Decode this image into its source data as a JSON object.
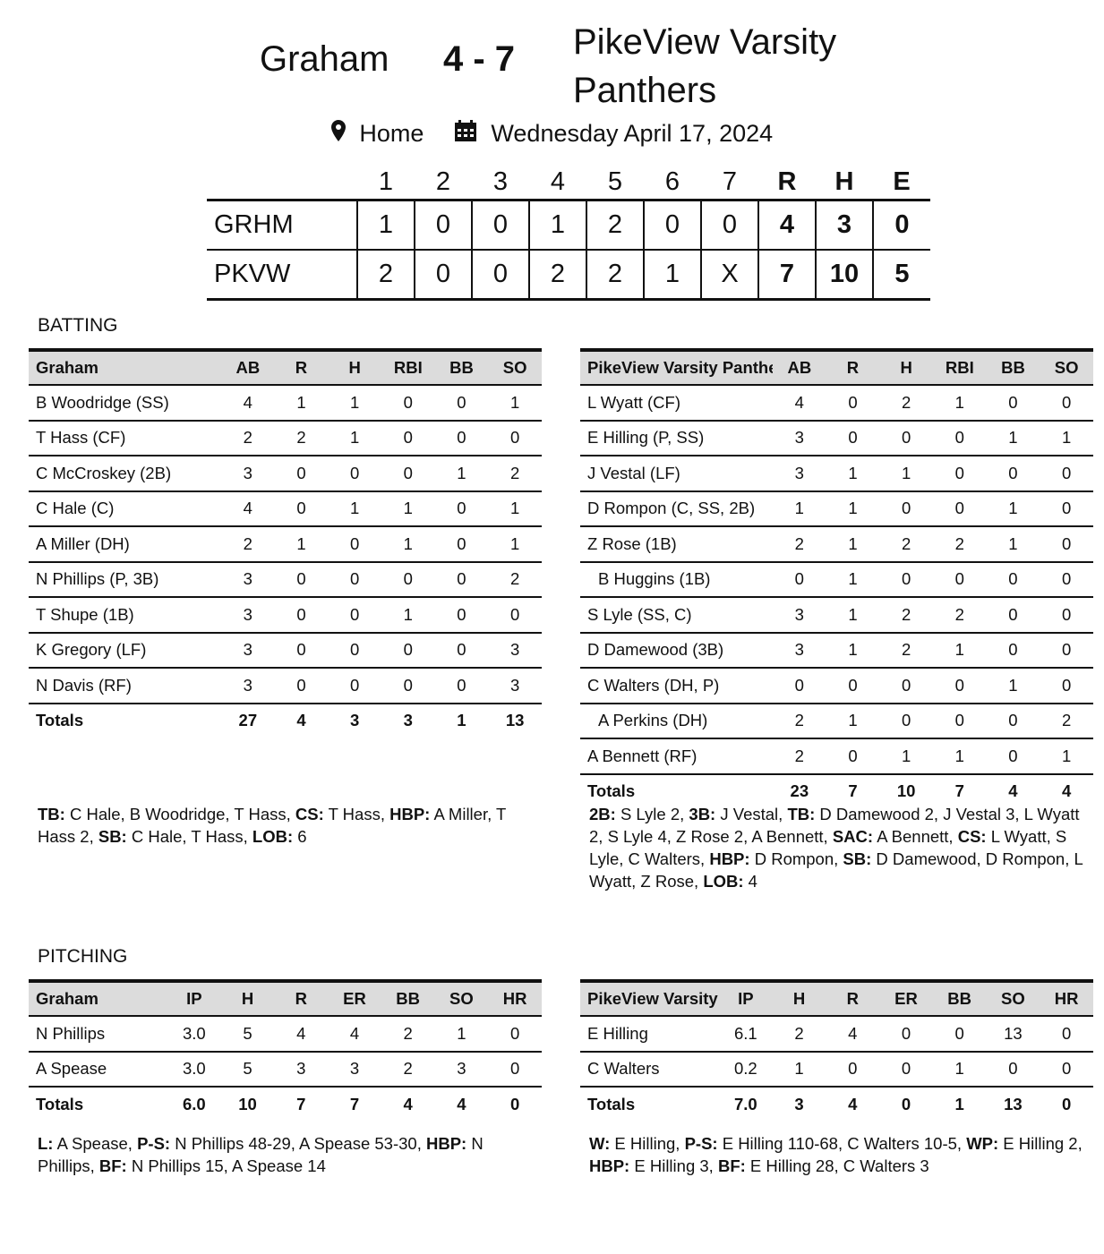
{
  "header": {
    "away": "Graham",
    "score": "4 - 7",
    "home": "PikeView Varsity Panthers",
    "location": "Home",
    "date": "Wednesday April 17, 2024",
    "location_icon": "map-pin-icon",
    "date_icon": "calendar-icon"
  },
  "linescore": {
    "columns": [
      "1",
      "2",
      "3",
      "4",
      "5",
      "6",
      "7",
      "R",
      "H",
      "E"
    ],
    "rows": [
      {
        "team": "GRHM",
        "innings": [
          "1",
          "0",
          "0",
          "1",
          "2",
          "0",
          "0"
        ],
        "r": "4",
        "h": "3",
        "e": "0"
      },
      {
        "team": "PKVW",
        "innings": [
          "2",
          "0",
          "0",
          "2",
          "2",
          "1",
          "X"
        ],
        "r": "7",
        "h": "10",
        "e": "5"
      }
    ]
  },
  "batting": {
    "title": "BATTING",
    "columns": [
      "AB",
      "R",
      "H",
      "RBI",
      "BB",
      "SO"
    ],
    "away": {
      "team": "Graham",
      "rows": [
        {
          "name": "B Woodridge (SS)",
          "stats": [
            "4",
            "1",
            "1",
            "0",
            "0",
            "1"
          ]
        },
        {
          "name": "T Hass (CF)",
          "stats": [
            "2",
            "2",
            "1",
            "0",
            "0",
            "0"
          ]
        },
        {
          "name": "C McCroskey (2B)",
          "stats": [
            "3",
            "0",
            "0",
            "0",
            "1",
            "2"
          ]
        },
        {
          "name": "C Hale (C)",
          "stats": [
            "4",
            "0",
            "1",
            "1",
            "0",
            "1"
          ]
        },
        {
          "name": "A Miller (DH)",
          "stats": [
            "2",
            "1",
            "0",
            "1",
            "0",
            "1"
          ]
        },
        {
          "name": "N Phillips (P, 3B)",
          "stats": [
            "3",
            "0",
            "0",
            "0",
            "0",
            "2"
          ]
        },
        {
          "name": "T Shupe (1B)",
          "stats": [
            "3",
            "0",
            "0",
            "1",
            "0",
            "0"
          ]
        },
        {
          "name": "K Gregory (LF)",
          "stats": [
            "3",
            "0",
            "0",
            "0",
            "0",
            "3"
          ]
        },
        {
          "name": "N Davis (RF)",
          "stats": [
            "3",
            "0",
            "0",
            "0",
            "0",
            "3"
          ]
        }
      ],
      "totals": {
        "label": "Totals",
        "stats": [
          "27",
          "4",
          "3",
          "3",
          "1",
          "13"
        ]
      },
      "notes": [
        {
          "label": "TB:",
          "text": " C Hale, B Woodridge, T Hass, "
        },
        {
          "label": "CS:",
          "text": " T Hass, "
        },
        {
          "label": "HBP:",
          "text": " A Miller, T Hass 2, "
        },
        {
          "label": "SB:",
          "text": " C Hale, T Hass, "
        },
        {
          "label": "LOB:",
          "text": " 6"
        }
      ]
    },
    "home": {
      "team": "PikeView Varsity Panthers",
      "rows": [
        {
          "name": "L Wyatt (CF)",
          "stats": [
            "4",
            "0",
            "2",
            "1",
            "0",
            "0"
          ]
        },
        {
          "name": "E Hilling (P, SS)",
          "stats": [
            "3",
            "0",
            "0",
            "0",
            "1",
            "1"
          ]
        },
        {
          "name": "J Vestal (LF)",
          "stats": [
            "3",
            "1",
            "1",
            "0",
            "0",
            "0"
          ]
        },
        {
          "name": "D Rompon (C, SS, 2B)",
          "stats": [
            "1",
            "1",
            "0",
            "0",
            "1",
            "0"
          ]
        },
        {
          "name": "Z Rose (1B)",
          "stats": [
            "2",
            "1",
            "2",
            "2",
            "1",
            "0"
          ]
        },
        {
          "name": "B Huggins (1B)",
          "sub": true,
          "stats": [
            "0",
            "1",
            "0",
            "0",
            "0",
            "0"
          ]
        },
        {
          "name": "S Lyle (SS, C)",
          "stats": [
            "3",
            "1",
            "2",
            "2",
            "0",
            "0"
          ]
        },
        {
          "name": "D Damewood (3B)",
          "stats": [
            "3",
            "1",
            "2",
            "1",
            "0",
            "0"
          ]
        },
        {
          "name": "C Walters (DH, P)",
          "stats": [
            "0",
            "0",
            "0",
            "0",
            "1",
            "0"
          ]
        },
        {
          "name": "A Perkins (DH)",
          "sub": true,
          "stats": [
            "2",
            "1",
            "0",
            "0",
            "0",
            "2"
          ]
        },
        {
          "name": "A Bennett (RF)",
          "stats": [
            "2",
            "0",
            "1",
            "1",
            "0",
            "1"
          ]
        }
      ],
      "totals": {
        "label": "Totals",
        "stats": [
          "23",
          "7",
          "10",
          "7",
          "4",
          "4"
        ]
      },
      "notes": [
        {
          "label": "2B:",
          "text": " S Lyle 2, "
        },
        {
          "label": "3B:",
          "text": " J Vestal, "
        },
        {
          "label": "TB:",
          "text": " D Damewood 2, J Vestal 3, L Wyatt 2, S Lyle 4, Z Rose 2, A Bennett, "
        },
        {
          "label": "SAC:",
          "text": " A Bennett, "
        },
        {
          "label": "CS:",
          "text": " L Wyatt, S Lyle, C Walters, "
        },
        {
          "label": "HBP:",
          "text": " D Rompon, "
        },
        {
          "label": "SB:",
          "text": " D Damewood, D Rompon, L Wyatt, Z Rose, "
        },
        {
          "label": "LOB:",
          "text": " 4"
        }
      ]
    }
  },
  "pitching": {
    "title": "PITCHING",
    "columns": [
      "IP",
      "H",
      "R",
      "ER",
      "BB",
      "SO",
      "HR"
    ],
    "away": {
      "team": "Graham",
      "rows": [
        {
          "name": "N Phillips",
          "stats": [
            "3.0",
            "5",
            "4",
            "4",
            "2",
            "1",
            "0"
          ]
        },
        {
          "name": "A Spease",
          "stats": [
            "3.0",
            "5",
            "3",
            "3",
            "2",
            "3",
            "0"
          ]
        }
      ],
      "totals": {
        "label": "Totals",
        "stats": [
          "6.0",
          "10",
          "7",
          "7",
          "4",
          "4",
          "0"
        ]
      },
      "notes": [
        {
          "label": "L:",
          "text": " A Spease, "
        },
        {
          "label": "P-S:",
          "text": " N Phillips 48-29, A Spease 53-30, "
        },
        {
          "label": "HBP:",
          "text": " N Phillips, "
        },
        {
          "label": "BF:",
          "text": " N Phillips 15, A Spease 14"
        }
      ]
    },
    "home": {
      "team": "PikeView Varsity Panthers",
      "rows": [
        {
          "name": "E Hilling",
          "stats": [
            "6.1",
            "2",
            "4",
            "0",
            "0",
            "13",
            "0"
          ]
        },
        {
          "name": "C Walters",
          "stats": [
            "0.2",
            "1",
            "0",
            "0",
            "1",
            "0",
            "0"
          ]
        }
      ],
      "totals": {
        "label": "Totals",
        "stats": [
          "7.0",
          "3",
          "4",
          "0",
          "1",
          "13",
          "0"
        ]
      },
      "notes": [
        {
          "label": "W:",
          "text": " E Hilling, "
        },
        {
          "label": "P-S:",
          "text": " E Hilling 110-68, C Walters 10-5, "
        },
        {
          "label": "WP:",
          "text": " E Hilling 2, "
        },
        {
          "label": "HBP:",
          "text": " E Hilling 3, "
        },
        {
          "label": "BF:",
          "text": " E Hilling 28, C Walters 3"
        }
      ]
    }
  }
}
